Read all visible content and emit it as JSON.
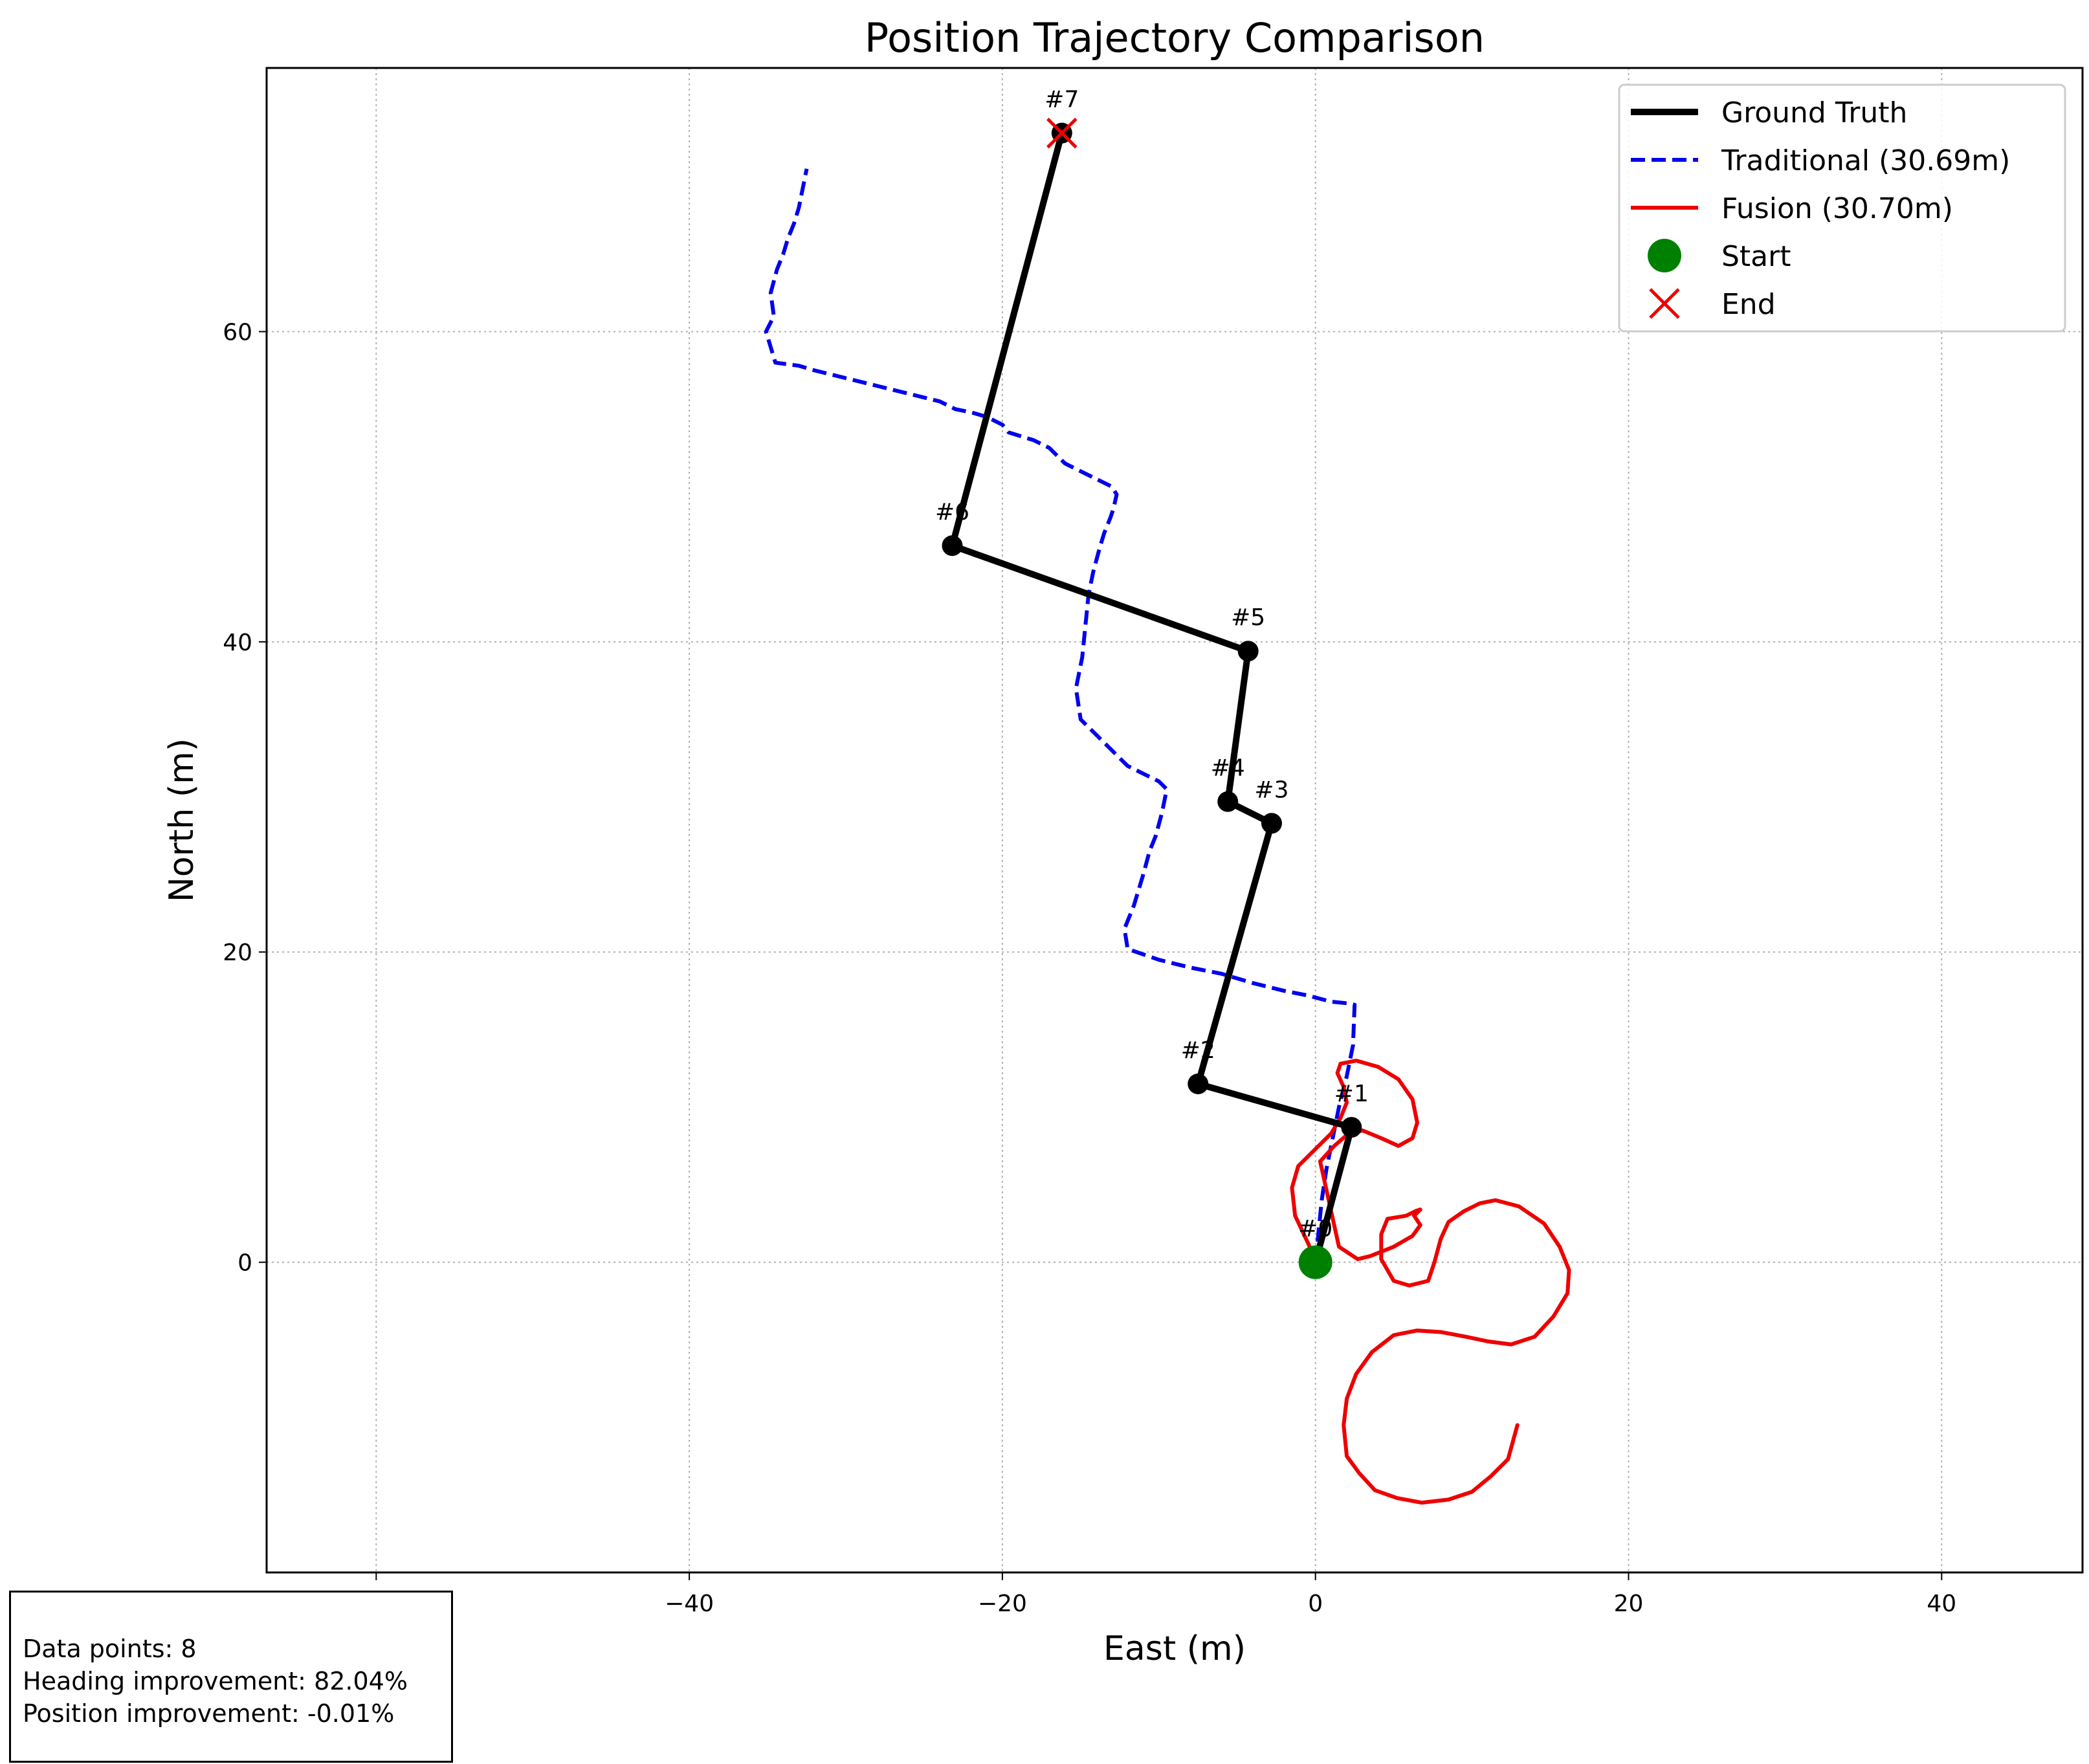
{
  "chart_data": {
    "type": "line",
    "title": "Position Trajectory Comparison",
    "xlabel": "East (m)",
    "ylabel": "North (m)",
    "xlim": [
      -67,
      49
    ],
    "ylim": [
      -20,
      77
    ],
    "x_ticks": [
      -60,
      -40,
      -20,
      0,
      20,
      40
    ],
    "y_ticks": [
      0,
      20,
      40,
      60
    ],
    "grid": true,
    "legend_position": "top-right",
    "colors": {
      "ground_truth": "#000000",
      "traditional": "#0000ee",
      "fusion": "#ee0000",
      "start": "#008000",
      "end": "#ee0000"
    },
    "series": [
      {
        "name": "Ground Truth",
        "style": "solid",
        "x": [
          0.0,
          2.3,
          -7.5,
          -2.8,
          -5.6,
          -4.3,
          -23.2,
          -16.2
        ],
        "y": [
          0.0,
          8.7,
          11.5,
          28.3,
          29.7,
          39.4,
          46.2,
          72.8
        ],
        "point_labels": [
          "#0",
          "#1",
          "#2",
          "#3",
          "#4",
          "#5",
          "#6",
          "#7"
        ]
      },
      {
        "name": "Traditional (30.69m)",
        "style": "dashed",
        "x": [
          0.0,
          0.2,
          0.4,
          0.7,
          1.1,
          1.5,
          2.0,
          2.4,
          2.5,
          2.0,
          1.0,
          -0.5,
          -2.0,
          -4.0,
          -6.0,
          -8.0,
          -10.0,
          -12.0,
          -12.2,
          -11.6,
          -11.0,
          -10.6,
          -10.2,
          -9.8,
          -9.5,
          -10.0,
          -12.0,
          -13.0,
          -14.0,
          -15.0,
          -15.3,
          -14.9,
          -14.7,
          -14.5,
          -14.2,
          -13.8,
          -13.5,
          -13.1,
          -12.9,
          -12.7,
          -13.0,
          -14.0,
          -16.0,
          -17.0,
          -18.0,
          -19.6,
          -20.0,
          -21.0,
          -22.0,
          -23.0,
          -24.0,
          -26.0,
          -28.0,
          -30.0,
          -32.0,
          -33.0,
          -34.5,
          -35.1,
          -34.6,
          -34.8,
          -34.4,
          -34.0,
          -33.7,
          -33.3,
          -33.0,
          -32.8,
          -32.6,
          -32.5
        ],
        "y": [
          0.0,
          2.0,
          4.0,
          6.0,
          8.0,
          10.0,
          12.0,
          14.0,
          16.6,
          16.7,
          16.8,
          17.2,
          17.5,
          18.0,
          18.6,
          19.0,
          19.5,
          20.2,
          21.5,
          23.0,
          25.0,
          26.5,
          27.5,
          29.0,
          30.5,
          31.0,
          32.0,
          33.0,
          34.0,
          35.0,
          37.0,
          39.0,
          41.0,
          43.0,
          44.5,
          46.0,
          47.0,
          48.0,
          48.6,
          49.5,
          50.0,
          50.5,
          51.5,
          52.5,
          53.0,
          53.5,
          54.0,
          54.5,
          54.8,
          55.0,
          55.5,
          56.0,
          56.5,
          57.0,
          57.5,
          57.8,
          58.0,
          60.0,
          61.0,
          62.5,
          64.0,
          65.0,
          66.0,
          67.0,
          68.0,
          69.0,
          70.0,
          70.5
        ]
      },
      {
        "name": "Fusion (30.70m)",
        "style": "solid",
        "x": [
          0.0,
          -0.6,
          -1.3,
          -1.5,
          -1.1,
          -0.1,
          1.0,
          1.6,
          2.0,
          1.8,
          1.4,
          1.6,
          2.6,
          4.0,
          5.3,
          6.2,
          6.5,
          6.2,
          5.3,
          4.2,
          3.0,
          2.0,
          1.2,
          0.3,
          1.5,
          2.7,
          3.5,
          5.0,
          6.2,
          6.7,
          6.3,
          6.7,
          6.4,
          5.8,
          4.6,
          4.2,
          4.2,
          5.0,
          6.0,
          7.2,
          7.6,
          8.0,
          8.5,
          9.5,
          10.5,
          11.5,
          13.0,
          14.6,
          15.6,
          16.2,
          16.1,
          15.2,
          14.0,
          12.5,
          11.0,
          9.6,
          8.0,
          6.5,
          5.0,
          3.6,
          2.6,
          2.0,
          1.8,
          2.0,
          2.8,
          3.8,
          5.2,
          6.8,
          8.5,
          10.0,
          11.2,
          12.3,
          12.9
        ],
        "y": [
          0.2,
          1.5,
          3.0,
          4.8,
          6.2,
          7.2,
          8.3,
          9.3,
          10.3,
          11.3,
          12.2,
          12.8,
          13.0,
          12.6,
          11.8,
          10.5,
          9.0,
          8.0,
          7.5,
          8.0,
          8.5,
          8.2,
          7.5,
          6.5,
          1.0,
          0.2,
          0.4,
          1.0,
          1.7,
          2.4,
          3.0,
          3.4,
          3.3,
          3.0,
          2.8,
          1.8,
          0.2,
          -1.2,
          -1.5,
          -1.2,
          0.0,
          1.5,
          2.6,
          3.3,
          3.8,
          4.0,
          3.6,
          2.5,
          1.0,
          -0.5,
          -2.0,
          -3.5,
          -4.8,
          -5.3,
          -5.1,
          -4.8,
          -4.5,
          -4.4,
          -4.7,
          -5.8,
          -7.2,
          -8.8,
          -10.5,
          -12.5,
          -13.6,
          -14.7,
          -15.2,
          -15.5,
          -15.3,
          -14.8,
          -13.8,
          -12.7,
          -10.5
        ]
      }
    ],
    "markers": [
      {
        "name": "Start",
        "x": 0.0,
        "y": 0.0,
        "shape": "circle"
      },
      {
        "name": "End",
        "x": -16.2,
        "y": 72.8,
        "shape": "x"
      }
    ]
  },
  "info_box": {
    "data_points": "Data points: 8",
    "heading_improvement": "Heading improvement: 82.04%",
    "position_improvement": "Position improvement: -0.01%"
  }
}
